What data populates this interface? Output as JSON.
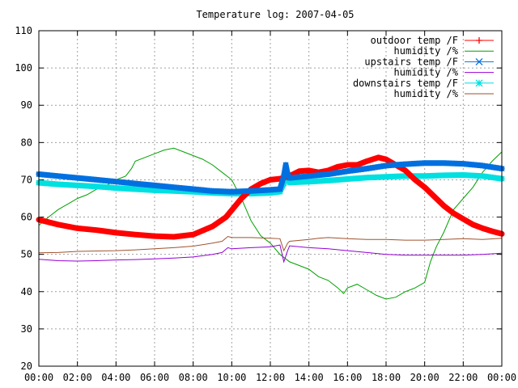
{
  "chart_data": {
    "type": "line",
    "title": "Temperature log: 2007-04-05",
    "xlabel": "",
    "ylabel": "",
    "ylim": [
      20,
      110
    ],
    "xlim": [
      0,
      24
    ],
    "x_ticks": [
      "00:00",
      "02:00",
      "04:00",
      "06:00",
      "08:00",
      "10:00",
      "12:00",
      "14:00",
      "16:00",
      "18:00",
      "20:00",
      "22:00",
      "00:00"
    ],
    "y_ticks": [
      20,
      30,
      40,
      50,
      60,
      70,
      80,
      90,
      100,
      110
    ],
    "grid": true,
    "legend_position": "top-right",
    "series": [
      {
        "name": "outdoor temp /F",
        "color": "#ff0000",
        "marker": "plus",
        "points": [
          [
            0,
            59.3
          ],
          [
            1,
            58
          ],
          [
            2,
            57
          ],
          [
            3,
            56.5
          ],
          [
            4,
            55.8
          ],
          [
            5,
            55.3
          ],
          [
            6,
            54.9
          ],
          [
            7,
            54.7
          ],
          [
            8,
            55.3
          ],
          [
            9,
            57.5
          ],
          [
            9.7,
            60
          ],
          [
            10.5,
            65
          ],
          [
            11,
            67.5
          ],
          [
            11.5,
            69
          ],
          [
            12,
            70
          ],
          [
            12.5,
            70.3
          ],
          [
            13,
            71
          ],
          [
            13.5,
            72.3
          ],
          [
            14,
            72.5
          ],
          [
            14.5,
            72
          ],
          [
            15,
            72.5
          ],
          [
            15.5,
            73.5
          ],
          [
            16,
            74
          ],
          [
            16.5,
            74
          ],
          [
            17,
            75
          ],
          [
            17.6,
            76
          ],
          [
            18,
            75.5
          ],
          [
            18.5,
            74
          ],
          [
            19,
            72.5
          ],
          [
            19.5,
            70
          ],
          [
            20,
            68
          ],
          [
            20.5,
            65.5
          ],
          [
            21,
            63
          ],
          [
            21.5,
            61
          ],
          [
            22,
            59.5
          ],
          [
            22.5,
            58
          ],
          [
            23,
            57
          ],
          [
            23.5,
            56.2
          ],
          [
            24,
            55.5
          ]
        ]
      },
      {
        "name": "humidity /%",
        "color": "#00a000",
        "marker": "none",
        "points": [
          [
            0,
            57.8
          ],
          [
            0.5,
            60
          ],
          [
            1,
            62
          ],
          [
            1.5,
            63.5
          ],
          [
            2,
            65
          ],
          [
            2.5,
            66
          ],
          [
            3,
            67.5
          ],
          [
            3.5,
            68.5
          ],
          [
            4,
            70
          ],
          [
            4.5,
            71
          ],
          [
            4.8,
            73
          ],
          [
            5,
            75
          ],
          [
            5.5,
            76
          ],
          [
            6,
            77
          ],
          [
            6.5,
            78
          ],
          [
            7,
            78.5
          ],
          [
            7.5,
            77.5
          ],
          [
            8,
            76.5
          ],
          [
            8.5,
            75.5
          ],
          [
            9,
            74
          ],
          [
            9.5,
            72
          ],
          [
            10,
            70
          ],
          [
            10.5,
            65
          ],
          [
            11,
            59
          ],
          [
            11.5,
            55
          ],
          [
            12,
            53
          ],
          [
            12.5,
            50
          ],
          [
            13,
            48
          ],
          [
            13.5,
            47
          ],
          [
            14,
            46
          ],
          [
            14.5,
            44
          ],
          [
            15,
            43
          ],
          [
            15.5,
            41
          ],
          [
            15.8,
            39.5
          ],
          [
            16,
            41
          ],
          [
            16.5,
            42
          ],
          [
            17,
            40.5
          ],
          [
            17.5,
            39
          ],
          [
            18,
            38
          ],
          [
            18.5,
            38.5
          ],
          [
            19,
            40
          ],
          [
            19.5,
            41
          ],
          [
            20,
            42.5
          ],
          [
            20.3,
            48
          ],
          [
            20.6,
            52
          ],
          [
            21,
            56
          ],
          [
            21.5,
            62
          ],
          [
            22,
            65
          ],
          [
            22.5,
            68
          ],
          [
            23,
            72
          ],
          [
            23.5,
            75
          ],
          [
            24,
            77.5
          ]
        ]
      },
      {
        "name": "upstairs temp /F",
        "color": "#0070e0",
        "marker": "cross",
        "points": [
          [
            0,
            71.5
          ],
          [
            1,
            71
          ],
          [
            2,
            70.5
          ],
          [
            3,
            70
          ],
          [
            4,
            69.5
          ],
          [
            5,
            69
          ],
          [
            6,
            68.5
          ],
          [
            7,
            68
          ],
          [
            8,
            67.5
          ],
          [
            9,
            67
          ],
          [
            10,
            66.8
          ],
          [
            11,
            67
          ],
          [
            12,
            67.3
          ],
          [
            12.5,
            67.5
          ],
          [
            12.7,
            71
          ],
          [
            12.8,
            74
          ],
          [
            12.9,
            71.5
          ],
          [
            13,
            70.5
          ],
          [
            14,
            71
          ],
          [
            15,
            71.5
          ],
          [
            16,
            72.3
          ],
          [
            17,
            73
          ],
          [
            18,
            73.8
          ],
          [
            19,
            74.2
          ],
          [
            20,
            74.5
          ],
          [
            21,
            74.5
          ],
          [
            22,
            74.3
          ],
          [
            23,
            73.8
          ],
          [
            24,
            73
          ]
        ]
      },
      {
        "name": "humidity /%",
        "color": "#9400d3",
        "marker": "none",
        "points": [
          [
            0,
            48.7
          ],
          [
            1,
            48.3
          ],
          [
            2,
            48.2
          ],
          [
            3,
            48.3
          ],
          [
            4,
            48.5
          ],
          [
            5,
            48.6
          ],
          [
            6,
            48.8
          ],
          [
            7,
            49
          ],
          [
            8,
            49.3
          ],
          [
            9,
            50
          ],
          [
            9.5,
            50.5
          ],
          [
            9.8,
            51.8
          ],
          [
            10,
            51.5
          ],
          [
            11,
            51.8
          ],
          [
            12,
            52
          ],
          [
            12.5,
            52.5
          ],
          [
            12.7,
            48
          ],
          [
            12.9,
            51
          ],
          [
            13,
            52.3
          ],
          [
            14,
            51.8
          ],
          [
            15,
            51.5
          ],
          [
            16,
            51
          ],
          [
            17,
            50.5
          ],
          [
            18,
            50
          ],
          [
            19,
            49.8
          ],
          [
            20,
            49.8
          ],
          [
            21,
            49.8
          ],
          [
            22,
            49.8
          ],
          [
            23,
            50
          ],
          [
            24,
            50.3
          ]
        ]
      },
      {
        "name": "downstairs temp /F",
        "color": "#00e0e0",
        "marker": "star",
        "points": [
          [
            0,
            69.2
          ],
          [
            1,
            68.8
          ],
          [
            2,
            68.5
          ],
          [
            3,
            68.2
          ],
          [
            4,
            67.8
          ],
          [
            5,
            67.5
          ],
          [
            6,
            67.2
          ],
          [
            7,
            67
          ],
          [
            8,
            66.8
          ],
          [
            9,
            66.5
          ],
          [
            10,
            66.3
          ],
          [
            11,
            66.3
          ],
          [
            12,
            66.5
          ],
          [
            12.5,
            66.8
          ],
          [
            12.7,
            69
          ],
          [
            12.8,
            72.5
          ],
          [
            12.9,
            70
          ],
          [
            13,
            69.3
          ],
          [
            14,
            69.5
          ],
          [
            15,
            69.8
          ],
          [
            16,
            70.2
          ],
          [
            17,
            70.6
          ],
          [
            18,
            70.8
          ],
          [
            19,
            71
          ],
          [
            20,
            71
          ],
          [
            21,
            71.2
          ],
          [
            22,
            71.3
          ],
          [
            23,
            71
          ],
          [
            24,
            70.3
          ]
        ]
      },
      {
        "name": "humidity /%",
        "color": "#a0522d",
        "marker": "none",
        "points": [
          [
            0,
            50.4
          ],
          [
            1,
            50.5
          ],
          [
            2,
            50.8
          ],
          [
            3,
            50.9
          ],
          [
            4,
            51
          ],
          [
            5,
            51.2
          ],
          [
            6,
            51.5
          ],
          [
            7,
            51.8
          ],
          [
            8,
            52.2
          ],
          [
            9,
            53
          ],
          [
            9.5,
            53.5
          ],
          [
            9.8,
            54.8
          ],
          [
            10,
            54.5
          ],
          [
            11,
            54.5
          ],
          [
            12,
            54.3
          ],
          [
            12.5,
            54.2
          ],
          [
            12.7,
            51
          ],
          [
            12.9,
            53
          ],
          [
            13,
            53.5
          ],
          [
            14,
            54
          ],
          [
            14.5,
            54.3
          ],
          [
            15,
            54.5
          ],
          [
            16,
            54.2
          ],
          [
            17,
            54
          ],
          [
            18,
            54
          ],
          [
            19,
            53.8
          ],
          [
            20,
            53.8
          ],
          [
            21,
            54
          ],
          [
            22,
            54.2
          ],
          [
            23,
            54
          ],
          [
            24,
            54.3
          ]
        ]
      }
    ]
  }
}
